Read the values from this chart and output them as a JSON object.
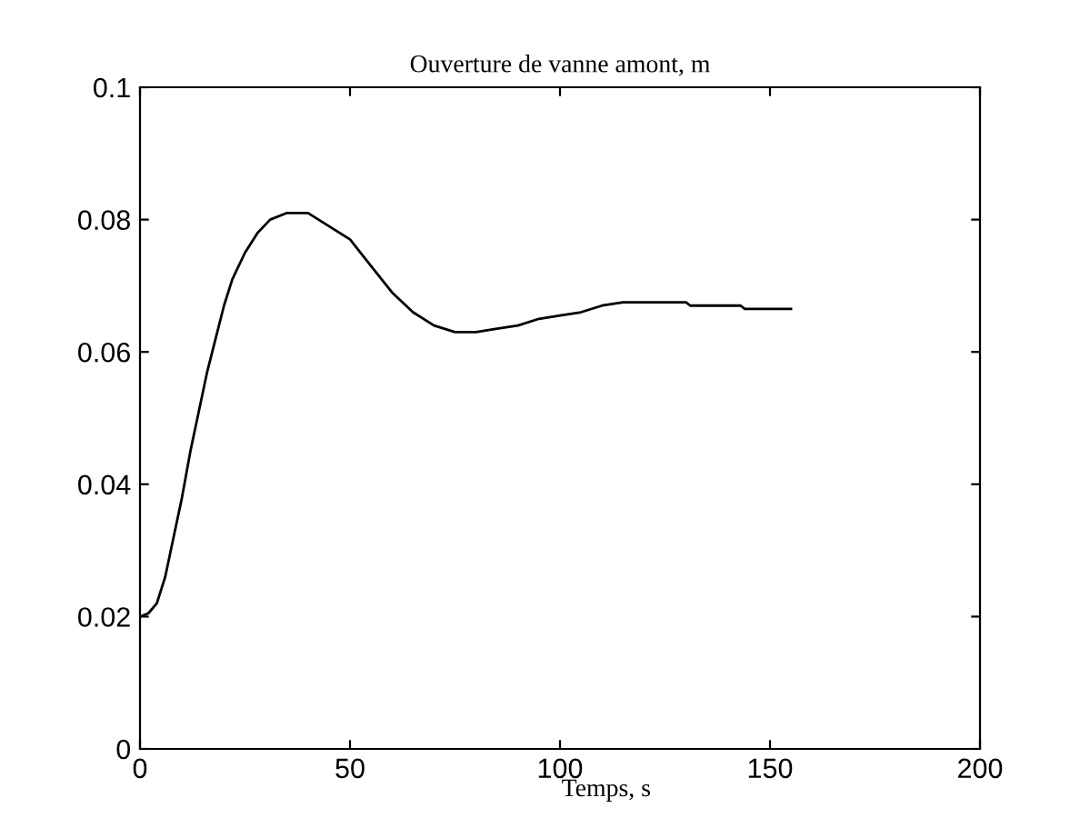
{
  "chart_data": {
    "type": "line",
    "title": "Ouverture de vanne amont, m",
    "xlabel": "Temps, s",
    "x": [
      0,
      2,
      4,
      6,
      8,
      10,
      12,
      14,
      16,
      18,
      20,
      22,
      25,
      28,
      31,
      35,
      40,
      45,
      50,
      55,
      60,
      65,
      70,
      75,
      80,
      85,
      90,
      95,
      100,
      105,
      110,
      115,
      120,
      130,
      131,
      143,
      144,
      155
    ],
    "series": [
      {
        "color": "#000000",
        "values": [
          0.02,
          0.0205,
          0.022,
          0.026,
          0.032,
          0.038,
          0.045,
          0.051,
          0.057,
          0.062,
          0.067,
          0.071,
          0.075,
          0.078,
          0.08,
          0.081,
          0.081,
          0.079,
          0.077,
          0.073,
          0.069,
          0.066,
          0.064,
          0.063,
          0.063,
          0.0635,
          0.064,
          0.065,
          0.0655,
          0.066,
          0.067,
          0.0675,
          0.0675,
          0.0675,
          0.067,
          0.067,
          0.0665,
          0.0665
        ]
      }
    ],
    "xlim": [
      0,
      200
    ],
    "ylim": [
      0,
      0.1
    ],
    "xticks": [
      0,
      50,
      100,
      150,
      200
    ],
    "yticks": [
      0,
      0.02,
      0.04,
      0.06,
      0.08,
      0.1
    ],
    "grid": false,
    "legend": false
  }
}
